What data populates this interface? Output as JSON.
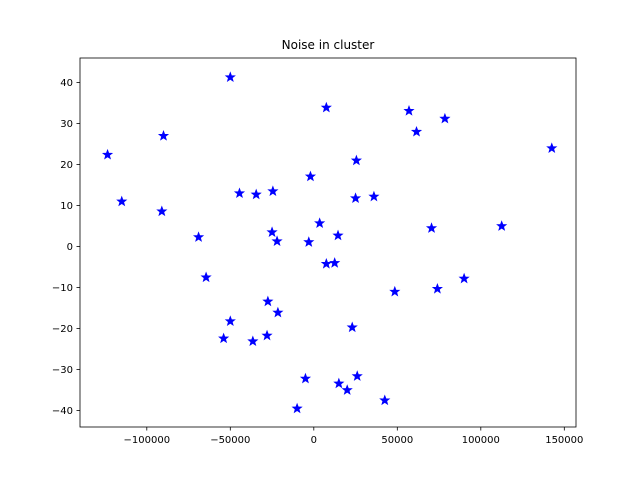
{
  "chart_data": {
    "type": "scatter",
    "title": "Noise in cluster",
    "xlabel": "",
    "ylabel": "",
    "xlim": [
      -140000,
      157000
    ],
    "ylim": [
      -44,
      46
    ],
    "marker": "star",
    "color": "#0000ff",
    "grid": false,
    "x_ticks": [
      {
        "value": -100000,
        "label": "−100000"
      },
      {
        "value": -50000,
        "label": "−50000"
      },
      {
        "value": 0,
        "label": "0"
      },
      {
        "value": 50000,
        "label": "50000"
      },
      {
        "value": 100000,
        "label": "100000"
      },
      {
        "value": 150000,
        "label": "150000"
      }
    ],
    "y_ticks": [
      {
        "value": -40,
        "label": "−40"
      },
      {
        "value": -30,
        "label": "−30"
      },
      {
        "value": -20,
        "label": "−20"
      },
      {
        "value": -10,
        "label": "−10"
      },
      {
        "value": 0,
        "label": "0"
      },
      {
        "value": 10,
        "label": "10"
      },
      {
        "value": 20,
        "label": "20"
      },
      {
        "value": 30,
        "label": "30"
      },
      {
        "value": 40,
        "label": "40"
      }
    ],
    "points": [
      {
        "x": -50000,
        "y": 41.3
      },
      {
        "x": -123500,
        "y": 22.4
      },
      {
        "x": -115000,
        "y": 11.0
      },
      {
        "x": -90000,
        "y": 27.0
      },
      {
        "x": -91000,
        "y": 8.6
      },
      {
        "x": -69000,
        "y": 2.3
      },
      {
        "x": -64500,
        "y": -7.5
      },
      {
        "x": -44500,
        "y": 13.0
      },
      {
        "x": -34500,
        "y": 12.7
      },
      {
        "x": -24500,
        "y": 13.5
      },
      {
        "x": -25000,
        "y": 3.5
      },
      {
        "x": -22000,
        "y": 1.3
      },
      {
        "x": -27500,
        "y": -13.4
      },
      {
        "x": -21500,
        "y": -16.1
      },
      {
        "x": -50000,
        "y": -18.2
      },
      {
        "x": -54000,
        "y": -22.4
      },
      {
        "x": -36500,
        "y": -23.1
      },
      {
        "x": -28000,
        "y": -21.7
      },
      {
        "x": -2000,
        "y": 17.1
      },
      {
        "x": 7500,
        "y": 33.9
      },
      {
        "x": 25500,
        "y": 21.0
      },
      {
        "x": 25000,
        "y": 11.8
      },
      {
        "x": 36000,
        "y": 12.2
      },
      {
        "x": 3500,
        "y": 5.7
      },
      {
        "x": -3000,
        "y": 1.1
      },
      {
        "x": 14500,
        "y": 2.7
      },
      {
        "x": 7500,
        "y": -4.2
      },
      {
        "x": 12500,
        "y": -4.0
      },
      {
        "x": 57000,
        "y": 33.1
      },
      {
        "x": 61500,
        "y": 28.0
      },
      {
        "x": 78500,
        "y": 31.2
      },
      {
        "x": 70500,
        "y": 4.5
      },
      {
        "x": 48500,
        "y": -11.0
      },
      {
        "x": 74000,
        "y": -10.3
      },
      {
        "x": 90000,
        "y": -7.8
      },
      {
        "x": 112500,
        "y": 5.0
      },
      {
        "x": 142500,
        "y": 24.0
      },
      {
        "x": 23000,
        "y": -19.7
      },
      {
        "x": -5000,
        "y": -32.2
      },
      {
        "x": 26000,
        "y": -31.6
      },
      {
        "x": 15000,
        "y": -33.4
      },
      {
        "x": 20000,
        "y": -35.0
      },
      {
        "x": -10000,
        "y": -39.5
      },
      {
        "x": 42500,
        "y": -37.5
      }
    ]
  }
}
